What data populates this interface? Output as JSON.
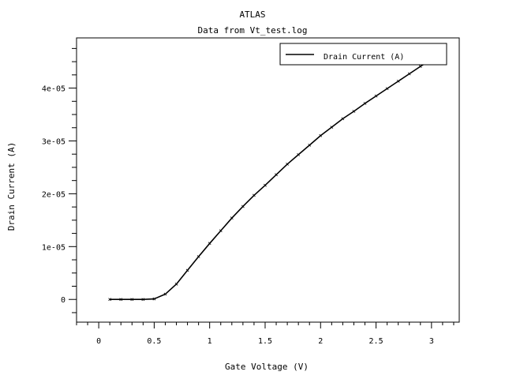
{
  "chart_data": {
    "type": "line",
    "title": "ATLAS",
    "subtitle": "Data from Vt_test.log",
    "xlabel": "Gate Voltage (V)",
    "ylabel": "Drain Current (A)",
    "xlim": [
      -0.2,
      3.25
    ],
    "ylim": [
      -4.3e-06,
      4.95e-05
    ],
    "x_ticks": [
      0,
      0.5,
      1,
      1.5,
      2,
      2.5,
      3
    ],
    "x_tick_labels": [
      "0",
      "0.5",
      "1",
      "1.5",
      "2",
      "2.5",
      "3"
    ],
    "y_ticks": [
      0,
      1e-05,
      2e-05,
      3e-05,
      4e-05
    ],
    "y_tick_labels": [
      "0",
      "1e-05",
      "2e-05",
      "3e-05",
      "4e-05"
    ],
    "grid": false,
    "legend_position": "top-right",
    "series": [
      {
        "name": "Drain Current (A)",
        "color": "#000000",
        "marker": "x",
        "x": [
          0.1,
          0.2,
          0.3,
          0.4,
          0.5,
          0.6,
          0.7,
          0.8,
          0.9,
          1.0,
          1.1,
          1.2,
          1.3,
          1.4,
          1.5,
          1.6,
          1.7,
          1.8,
          1.9,
          2.0,
          2.1,
          2.2,
          2.3,
          2.4,
          2.5,
          2.6,
          2.7,
          2.8,
          2.9,
          3.0
        ],
        "y": [
          0,
          0,
          0,
          0,
          1e-07,
          1e-06,
          2.9e-06,
          5.5e-06,
          8.1e-06,
          1.06e-05,
          1.3e-05,
          1.54e-05,
          1.76e-05,
          1.97e-05,
          2.16e-05,
          2.36e-05,
          2.56e-05,
          2.74e-05,
          2.92e-05,
          3.1e-05,
          3.26e-05,
          3.42e-05,
          3.56e-05,
          3.71e-05,
          3.85e-05,
          3.99e-05,
          4.13e-05,
          4.27e-05,
          4.41e-05,
          4.54e-05
        ]
      }
    ]
  }
}
